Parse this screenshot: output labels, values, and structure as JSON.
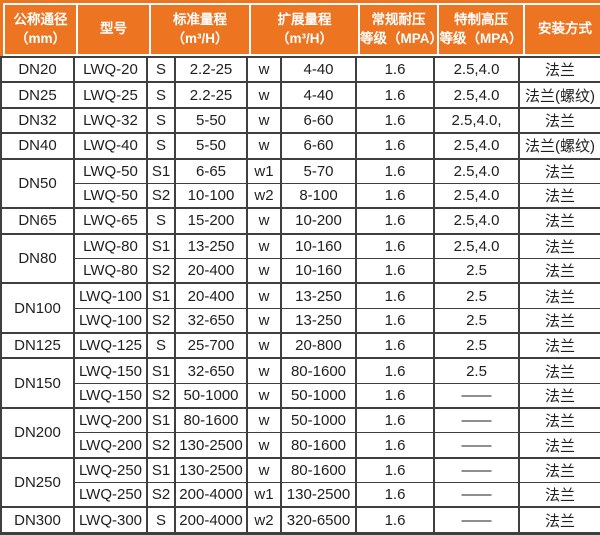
{
  "colors": {
    "header_bg": "#ed7421",
    "header_text": "#ffffff",
    "body_border": "#3f3f3f",
    "body_text": "#1f1f1f"
  },
  "header": {
    "cells": [
      {
        "lines": [
          "公称通径",
          "（mm）"
        ]
      },
      {
        "lines": [
          "型号"
        ]
      },
      {
        "lines": [
          "标准量程",
          "（m³/H）"
        ]
      },
      {
        "lines": [
          "扩展量程",
          "（m³/H）"
        ]
      },
      {
        "lines": [
          "常规耐压",
          "等级（MPA）"
        ]
      },
      {
        "lines": [
          "特制高压",
          "等级（MPA）"
        ]
      },
      {
        "lines": [
          "安装方式"
        ]
      }
    ]
  },
  "rows": [
    {
      "diameter": "DN20",
      "diameter_rowspan": 1,
      "model": "LWQ-20",
      "std_code": "S",
      "std_range": "2.2-25",
      "ext_code": "w",
      "ext_range": "4-40",
      "normal_pressure": "1.6",
      "high_pressure": "2.5,4.0",
      "install": "法兰",
      "group_start": true
    },
    {
      "diameter": "DN25",
      "diameter_rowspan": 1,
      "model": "LWQ-25",
      "std_code": "S",
      "std_range": "2.2-25",
      "ext_code": "w",
      "ext_range": "4-40",
      "normal_pressure": "1.6",
      "high_pressure": "2.5,4.0",
      "install": "法兰(螺纹)",
      "group_start": true
    },
    {
      "diameter": "DN32",
      "diameter_rowspan": 1,
      "model": "LWQ-32",
      "std_code": "S",
      "std_range": "5-50",
      "ext_code": "w",
      "ext_range": "6-60",
      "normal_pressure": "1.6",
      "high_pressure": "2.5,4.0,",
      "install": "法兰",
      "group_start": true
    },
    {
      "diameter": "DN40",
      "diameter_rowspan": 1,
      "model": "LWQ-40",
      "std_code": "S",
      "std_range": "5-50",
      "ext_code": "w",
      "ext_range": "6-60",
      "normal_pressure": "1.6",
      "high_pressure": "2.5,4.0",
      "install": "法兰(螺纹)",
      "group_start": true
    },
    {
      "diameter": "DN50",
      "diameter_rowspan": 2,
      "model": "LWQ-50",
      "std_code": "S1",
      "std_range": "6-65",
      "ext_code": "w1",
      "ext_range": "5-70",
      "normal_pressure": "1.6",
      "high_pressure": "2.5,4.0",
      "install": "法兰",
      "group_start": true
    },
    {
      "diameter": null,
      "model": "LWQ-50",
      "std_code": "S2",
      "std_range": "10-100",
      "ext_code": "w2",
      "ext_range": "8-100",
      "normal_pressure": "1.6",
      "high_pressure": "2.5,4.0",
      "install": "法兰",
      "group_start": false
    },
    {
      "diameter": "DN65",
      "diameter_rowspan": 1,
      "model": "LWQ-65",
      "std_code": "S",
      "std_range": "15-200",
      "ext_code": "w",
      "ext_range": "10-200",
      "normal_pressure": "1.6",
      "high_pressure": "2.5,4.0",
      "install": "法兰",
      "group_start": true
    },
    {
      "diameter": "DN80",
      "diameter_rowspan": 2,
      "model": "LWQ-80",
      "std_code": "S1",
      "std_range": "13-250",
      "ext_code": "w",
      "ext_range": "10-160",
      "normal_pressure": "1.6",
      "high_pressure": "2.5,4.0",
      "install": "法兰",
      "group_start": true
    },
    {
      "diameter": null,
      "model": "LWQ-80",
      "std_code": "S2",
      "std_range": "20-400",
      "ext_code": "w",
      "ext_range": "10-160",
      "normal_pressure": "1.6",
      "high_pressure": "2.5",
      "install": "法兰",
      "group_start": false
    },
    {
      "diameter": "DN100",
      "diameter_rowspan": 2,
      "model": "LWQ-100",
      "std_code": "S1",
      "std_range": "20-400",
      "ext_code": "w",
      "ext_range": "13-250",
      "normal_pressure": "1.6",
      "high_pressure": "2.5",
      "install": "法兰",
      "group_start": true
    },
    {
      "diameter": null,
      "model": "LWQ-100",
      "std_code": "S2",
      "std_range": "32-650",
      "ext_code": "w",
      "ext_range": "13-250",
      "normal_pressure": "1.6",
      "high_pressure": "2.5",
      "install": "法兰",
      "group_start": false
    },
    {
      "diameter": "DN125",
      "diameter_rowspan": 1,
      "model": "LWQ-125",
      "std_code": "S",
      "std_range": "25-700",
      "ext_code": "w",
      "ext_range": "20-800",
      "normal_pressure": "1.6",
      "high_pressure": "2.5",
      "install": "法兰",
      "group_start": true
    },
    {
      "diameter": "DN150",
      "diameter_rowspan": 2,
      "model": "LWQ-150",
      "std_code": "S1",
      "std_range": "32-650",
      "ext_code": "w",
      "ext_range": "80-1600",
      "normal_pressure": "1.6",
      "high_pressure": "2.5",
      "install": "法兰",
      "group_start": true
    },
    {
      "diameter": null,
      "model": "LWQ-150",
      "std_code": "S2",
      "std_range": "50-1000",
      "ext_code": "w",
      "ext_range": "50-1000",
      "normal_pressure": "1.6",
      "high_pressure": "——",
      "install": "法兰",
      "group_start": false
    },
    {
      "diameter": "DN200",
      "diameter_rowspan": 2,
      "model": "LWQ-200",
      "std_code": "S1",
      "std_range": "80-1600",
      "ext_code": "w",
      "ext_range": "50-1000",
      "normal_pressure": "1.6",
      "high_pressure": "——",
      "install": "法兰",
      "group_start": true
    },
    {
      "diameter": null,
      "model": "LWQ-200",
      "std_code": "S2",
      "std_range": "130-2500",
      "ext_code": "w",
      "ext_range": "80-1600",
      "normal_pressure": "1.6",
      "high_pressure": "——",
      "install": "法兰",
      "group_start": false
    },
    {
      "diameter": "DN250",
      "diameter_rowspan": 2,
      "model": "LWQ-250",
      "std_code": "S1",
      "std_range": "130-2500",
      "ext_code": "w",
      "ext_range": "80-1600",
      "normal_pressure": "1.6",
      "high_pressure": "——",
      "install": "法兰",
      "group_start": true
    },
    {
      "diameter": null,
      "model": "LWQ-250",
      "std_code": "S2",
      "std_range": "200-4000",
      "ext_code": "w1",
      "ext_range": "130-2500",
      "normal_pressure": "1.6",
      "high_pressure": "——",
      "install": "法兰",
      "group_start": false
    },
    {
      "diameter": "DN300",
      "diameter_rowspan": 1,
      "model": "LWQ-300",
      "std_code": "S",
      "std_range": "200-4000",
      "ext_code": "w2",
      "ext_range": "320-6500",
      "normal_pressure": "1.6",
      "high_pressure": "——",
      "install": "法兰",
      "group_start": true
    }
  ]
}
